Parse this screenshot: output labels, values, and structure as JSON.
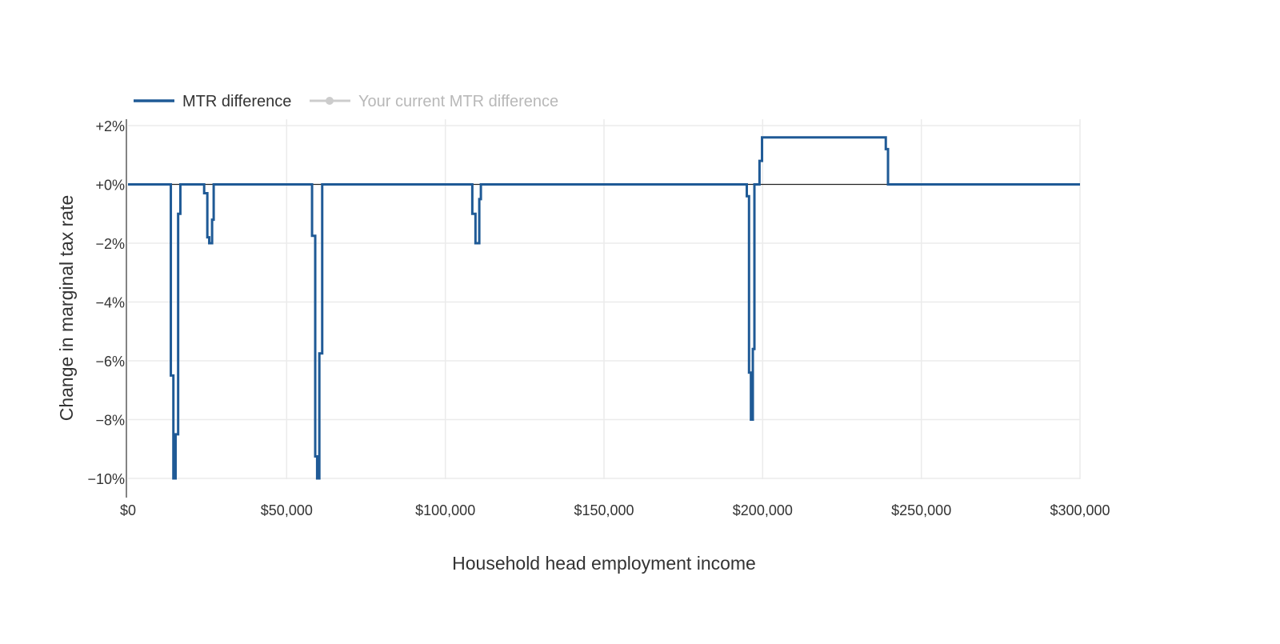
{
  "chart_data": {
    "type": "line",
    "title": "",
    "xlabel": "Household head employment income",
    "ylabel": "Change in marginal tax rate",
    "xlim": [
      0,
      300000
    ],
    "ylim": [
      -0.1,
      0.02
    ],
    "x_ticks": [
      0,
      50000,
      100000,
      150000,
      200000,
      250000,
      300000
    ],
    "x_tick_labels": [
      "$0",
      "$50,000",
      "$100,000",
      "$150,000",
      "$200,000",
      "$250,000",
      "$300,000"
    ],
    "y_ticks": [
      0.02,
      0,
      -0.02,
      -0.04,
      -0.06,
      -0.08,
      -0.1
    ],
    "y_tick_labels": [
      "+2%",
      "+0%",
      "−2%",
      "−4%",
      "−6%",
      "−8%",
      "−10%"
    ],
    "grid": true,
    "legend_position": "top-left",
    "legend": [
      {
        "name": "MTR difference",
        "color": "#1f5a96"
      },
      {
        "name": "Your current MTR difference",
        "color": "#cccccc"
      }
    ],
    "series": [
      {
        "name": "MTR difference",
        "color": "#1f5a96",
        "shape": "step",
        "x": [
          0,
          13500,
          13500,
          14300,
          14300,
          15000,
          15000,
          15800,
          15800,
          16500,
          16500,
          24000,
          24000,
          25000,
          25000,
          25600,
          25600,
          26500,
          26500,
          27000,
          27000,
          58000,
          58000,
          59000,
          59000,
          59600,
          59600,
          60300,
          60300,
          61200,
          61200,
          108500,
          108500,
          109500,
          109500,
          110700,
          110700,
          111200,
          111200,
          195000,
          195000,
          195700,
          195700,
          196300,
          196300,
          196900,
          196900,
          197400,
          197400,
          198000,
          198000,
          199000,
          199000,
          199800,
          199800,
          238800,
          238800,
          239500,
          239500,
          300000
        ],
        "y": [
          0,
          0,
          -0.065,
          -0.065,
          -0.1,
          -0.1,
          -0.085,
          -0.085,
          -0.01,
          -0.01,
          0,
          0,
          -0.003,
          -0.003,
          -0.018,
          -0.018,
          -0.02,
          -0.02,
          -0.012,
          -0.012,
          0,
          0,
          -0.0175,
          -0.0175,
          -0.0925,
          -0.0925,
          -0.1,
          -0.1,
          -0.0575,
          -0.0575,
          0,
          0,
          -0.01,
          -0.01,
          -0.02,
          -0.02,
          -0.005,
          -0.005,
          0,
          0,
          -0.004,
          -0.004,
          -0.064,
          -0.064,
          -0.08,
          -0.08,
          -0.056,
          -0.056,
          0,
          0,
          0,
          0,
          0.008,
          0.008,
          0.016,
          0.016,
          0.012,
          0.012,
          0,
          0
        ]
      }
    ]
  }
}
